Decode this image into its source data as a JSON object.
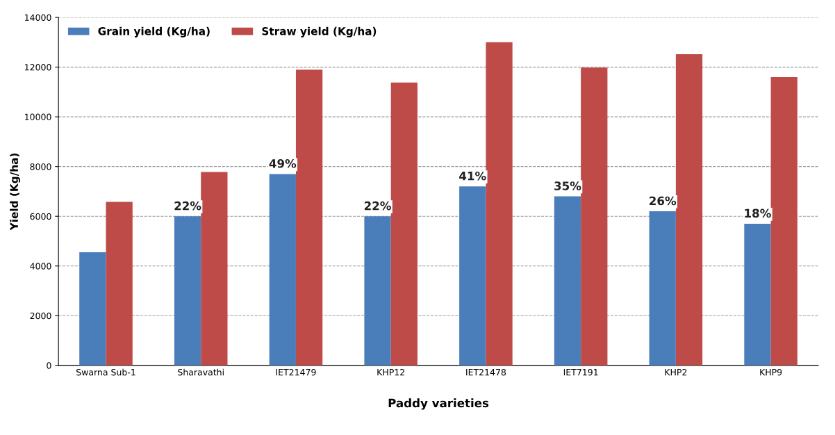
{
  "chart_data": {
    "type": "bar",
    "xlabel": "Paddy varieties",
    "ylabel": "Yield (Kg/ha)",
    "categories": [
      "Swarna Sub-1",
      "Sharavathi",
      "IET21479",
      "KHP12",
      "IET21478",
      "IET7191",
      "KHP2",
      "KHP9"
    ],
    "series": [
      {
        "name": "Grain yield (Kg/ha)",
        "color": "#4a7ebb",
        "values": [
          4550,
          6000,
          7700,
          6000,
          7200,
          6800,
          6200,
          5700
        ]
      },
      {
        "name": "Straw yield (Kg/ha)",
        "color": "#be4b48",
        "values": [
          6580,
          7780,
          11900,
          11380,
          13000,
          11980,
          12520,
          11600
        ]
      }
    ],
    "ylim": [
      0,
      14000
    ],
    "yticks": [
      0,
      2000,
      4000,
      6000,
      8000,
      10000,
      12000,
      14000
    ],
    "annotations": [
      {
        "text": "22%",
        "x": "Sharavathi",
        "y": 6000
      },
      {
        "text": "49%",
        "x": "IET21479",
        "y": 7700
      },
      {
        "text": "22%",
        "x": "KHP12",
        "y": 6000
      },
      {
        "text": "41%",
        "x": "IET21478",
        "y": 7200
      },
      {
        "text": "35%",
        "x": "IET7191",
        "y": 6800
      },
      {
        "text": "26%",
        "x": "KHP2",
        "y": 6200
      },
      {
        "text": "18%",
        "x": "KHP9",
        "y": 5700
      }
    ],
    "grid": "y",
    "legend": "top left"
  }
}
